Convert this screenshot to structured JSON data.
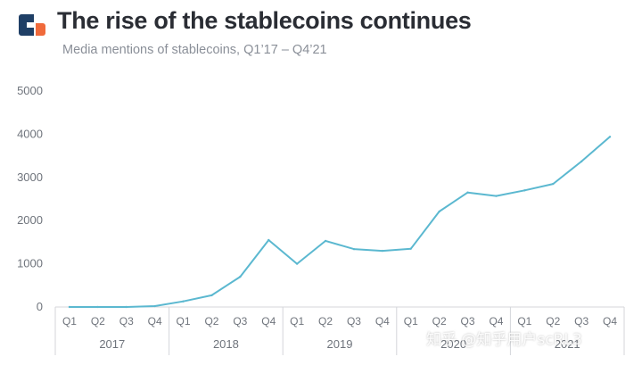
{
  "header": {
    "title": "The rise of the stablecoins continues",
    "subtitle": "Media mentions of stablecoins, Q1’17 – Q4’21"
  },
  "colors": {
    "line": "#5bb8d0",
    "logo_left": "#1f3f66",
    "logo_right": "#f06a3b",
    "axis": "#d4d6da"
  },
  "icons": {
    "logo": "company-logo-icon"
  },
  "watermark": "知乎 @知乎用户scRL3",
  "chart_data": {
    "type": "line",
    "title": "The rise of the stablecoins continues",
    "subtitle": "Media mentions of stablecoins, Q1’17 – Q4’21",
    "categories": [
      "Q1",
      "Q2",
      "Q3",
      "Q4",
      "Q1",
      "Q2",
      "Q3",
      "Q4",
      "Q1",
      "Q2",
      "Q3",
      "Q4",
      "Q1",
      "Q2",
      "Q3",
      "Q4",
      "Q1",
      "Q2",
      "Q3",
      "Q4"
    ],
    "year_groups": [
      {
        "label": "2017",
        "count": 4
      },
      {
        "label": "2018",
        "count": 4
      },
      {
        "label": "2019",
        "count": 4
      },
      {
        "label": "2020",
        "count": 4
      },
      {
        "label": "2021",
        "count": 4
      }
    ],
    "series": [
      {
        "values": [
          0,
          0,
          0,
          20,
          130,
          270,
          700,
          1550,
          1000,
          1530,
          1340,
          1300,
          1350,
          2210,
          2650,
          2570,
          2700,
          2850,
          3370,
          3940
        ]
      }
    ],
    "ylim": [
      0,
      5000
    ],
    "yticks": [
      0,
      1000,
      2000,
      3000,
      4000,
      5000
    ],
    "grid": false,
    "legend": "none"
  }
}
